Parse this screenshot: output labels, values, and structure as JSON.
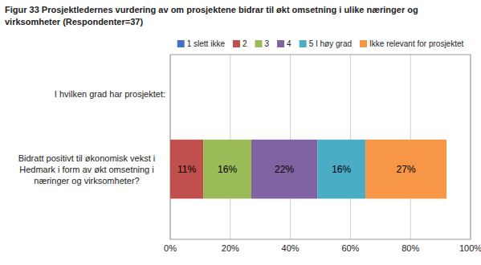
{
  "chart_data": {
    "type": "bar",
    "orientation": "horizontal",
    "stacked": true,
    "title": "Figur 33  Prosjektledernes vurdering av om prosjektene bidrar til økt omsetning i ulike næringer og",
    "subtitle": "virksomheter (Respondenter=37)",
    "annotations": [
      "I hvilken grad har prosjektet:"
    ],
    "categories": [
      "Bidratt positivt til økonomisk vekst i\nHedmark i form av økt omsetning i\nnæringer og virksomheter?"
    ],
    "series": [
      {
        "name": "1 slett ikke",
        "color": "#4472C4",
        "values": [
          null
        ]
      },
      {
        "name": "2",
        "color": "#C0504D",
        "values": [
          0.11
        ],
        "value_labels": [
          "11%"
        ]
      },
      {
        "name": "3",
        "color": "#9BBB59",
        "values": [
          0.16
        ],
        "value_labels": [
          "16%"
        ]
      },
      {
        "name": "4",
        "color": "#8064A2",
        "values": [
          0.22
        ],
        "value_labels": [
          "22%"
        ]
      },
      {
        "name": "5 I høy grad",
        "color": "#4BACC6",
        "values": [
          0.16
        ],
        "value_labels": [
          "16%"
        ]
      },
      {
        "name": "Ikke relevant for prosjektet",
        "color": "#F79646",
        "values": [
          0.27
        ],
        "value_labels": [
          "27%"
        ]
      }
    ],
    "xlim": [
      0,
      1.0
    ],
    "xticks": [
      {
        "value": 0,
        "label": "0%"
      },
      {
        "value": 0.2,
        "label": "20%"
      },
      {
        "value": 0.4,
        "label": "40%"
      },
      {
        "value": 0.6,
        "label": "60%"
      },
      {
        "value": 0.8,
        "label": "80%"
      },
      {
        "value": 1.0,
        "label": "100%"
      }
    ],
    "grid": true,
    "legend": "top",
    "data_labels": true
  }
}
